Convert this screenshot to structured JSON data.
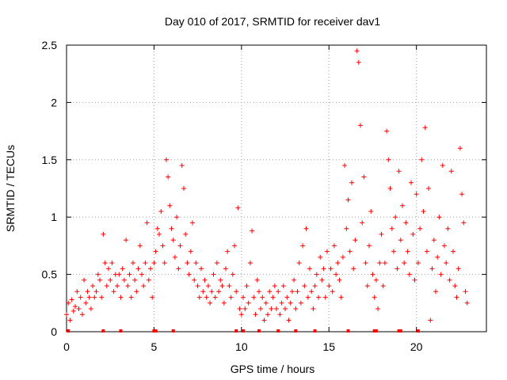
{
  "chart_data": {
    "type": "scatter",
    "title": "Day 010 of 2017, SRMTID for receiver dav1",
    "xlabel": "GPS time / hours",
    "ylabel": "SRMTID / TECUs",
    "xlim": [
      0,
      24
    ],
    "ylim": [
      0,
      2.5
    ],
    "x_ticks": [
      "0",
      "5",
      "10",
      "15",
      "20"
    ],
    "y_ticks": [
      "0",
      "0.5",
      "1",
      "1.5",
      "2",
      "2.5"
    ],
    "x_tick_values": [
      0,
      5,
      10,
      15,
      20
    ],
    "y_tick_values": [
      0,
      0.5,
      1,
      1.5,
      2,
      2.5
    ],
    "grid": true,
    "marker": "+",
    "color": "#ff0000",
    "series": [
      {
        "name": "SRMTID",
        "points": [
          [
            0.0,
            0.15
          ],
          [
            0.1,
            0.25
          ],
          [
            0.2,
            0.1
          ],
          [
            0.3,
            0.28
          ],
          [
            0.4,
            0.18
          ],
          [
            0.5,
            0.22
          ],
          [
            0.6,
            0.35
          ],
          [
            0.7,
            0.2
          ],
          [
            0.8,
            0.3
          ],
          [
            0.9,
            0.15
          ],
          [
            1.0,
            0.45
          ],
          [
            1.1,
            0.25
          ],
          [
            1.2,
            0.35
          ],
          [
            1.3,
            0.3
          ],
          [
            1.4,
            0.2
          ],
          [
            1.5,
            0.4
          ],
          [
            1.6,
            0.3
          ],
          [
            1.7,
            0.35
          ],
          [
            1.8,
            0.5
          ],
          [
            1.9,
            0.45
          ],
          [
            2.0,
            0.3
          ],
          [
            2.1,
            0.85
          ],
          [
            2.2,
            0.6
          ],
          [
            2.3,
            0.4
          ],
          [
            2.4,
            0.55
          ],
          [
            2.5,
            0.45
          ],
          [
            2.6,
            0.6
          ],
          [
            2.7,
            0.35
          ],
          [
            2.8,
            0.5
          ],
          [
            2.9,
            0.4
          ],
          [
            3.0,
            0.5
          ],
          [
            3.1,
            0.3
          ],
          [
            3.2,
            0.55
          ],
          [
            3.3,
            0.45
          ],
          [
            3.4,
            0.8
          ],
          [
            3.5,
            0.4
          ],
          [
            3.6,
            0.5
          ],
          [
            3.7,
            0.3
          ],
          [
            3.8,
            0.6
          ],
          [
            3.9,
            0.45
          ],
          [
            4.0,
            0.35
          ],
          [
            4.1,
            0.55
          ],
          [
            4.2,
            0.75
          ],
          [
            4.3,
            0.5
          ],
          [
            4.4,
            0.4
          ],
          [
            4.5,
            0.6
          ],
          [
            4.6,
            0.95
          ],
          [
            4.7,
            0.45
          ],
          [
            4.8,
            0.55
          ],
          [
            4.9,
            0.3
          ],
          [
            5.0,
            0.6
          ],
          [
            5.1,
            0.7
          ],
          [
            5.2,
            0.9
          ],
          [
            5.3,
            0.85
          ],
          [
            5.4,
            1.05
          ],
          [
            5.5,
            0.75
          ],
          [
            5.6,
            0.6
          ],
          [
            5.7,
            1.5
          ],
          [
            5.8,
            1.35
          ],
          [
            5.9,
            1.1
          ],
          [
            6.0,
            0.9
          ],
          [
            6.1,
            0.8
          ],
          [
            6.2,
            0.65
          ],
          [
            6.3,
            1.0
          ],
          [
            6.4,
            0.55
          ],
          [
            6.5,
            0.75
          ],
          [
            6.6,
            1.45
          ],
          [
            6.7,
            1.25
          ],
          [
            6.8,
            0.85
          ],
          [
            6.9,
            0.6
          ],
          [
            7.0,
            0.5
          ],
          [
            7.1,
            0.7
          ],
          [
            7.2,
            0.95
          ],
          [
            7.3,
            0.45
          ],
          [
            7.4,
            0.6
          ],
          [
            7.5,
            0.4
          ],
          [
            7.6,
            0.3
          ],
          [
            7.7,
            0.55
          ],
          [
            7.8,
            0.35
          ],
          [
            7.9,
            0.45
          ],
          [
            8.0,
            0.3
          ],
          [
            8.1,
            0.4
          ],
          [
            8.2,
            0.25
          ],
          [
            8.3,
            0.35
          ],
          [
            8.4,
            0.5
          ],
          [
            8.5,
            0.3
          ],
          [
            8.6,
            0.6
          ],
          [
            8.7,
            0.35
          ],
          [
            8.8,
            0.45
          ],
          [
            8.9,
            0.4
          ],
          [
            9.0,
            0.25
          ],
          [
            9.1,
            0.55
          ],
          [
            9.2,
            0.7
          ],
          [
            9.3,
            0.4
          ],
          [
            9.4,
            0.3
          ],
          [
            9.5,
            0.5
          ],
          [
            9.6,
            0.75
          ],
          [
            9.7,
            0.35
          ],
          [
            9.8,
            1.08
          ],
          [
            9.9,
            0.2
          ],
          [
            10.0,
            0.15
          ],
          [
            10.1,
            0.3
          ],
          [
            10.2,
            0.2
          ],
          [
            10.3,
            0.4
          ],
          [
            10.4,
            0.25
          ],
          [
            10.5,
            0.6
          ],
          [
            10.6,
            0.88
          ],
          [
            10.7,
            0.3
          ],
          [
            10.8,
            0.15
          ],
          [
            10.9,
            0.45
          ],
          [
            11.0,
            0.35
          ],
          [
            11.1,
            0.2
          ],
          [
            11.2,
            0.3
          ],
          [
            11.3,
            0.1
          ],
          [
            11.4,
            0.25
          ],
          [
            11.5,
            0.15
          ],
          [
            11.6,
            0.35
          ],
          [
            11.7,
            0.2
          ],
          [
            11.8,
            0.3
          ],
          [
            11.9,
            0.4
          ],
          [
            12.0,
            0.2
          ],
          [
            12.1,
            0.35
          ],
          [
            12.2,
            0.15
          ],
          [
            12.3,
            0.25
          ],
          [
            12.4,
            0.4
          ],
          [
            12.5,
            0.2
          ],
          [
            12.6,
            0.3
          ],
          [
            12.7,
            0.1
          ],
          [
            12.8,
            0.25
          ],
          [
            12.9,
            0.35
          ],
          [
            13.0,
            0.45
          ],
          [
            13.1,
            0.2
          ],
          [
            13.2,
            0.35
          ],
          [
            13.3,
            0.6
          ],
          [
            13.4,
            0.25
          ],
          [
            13.5,
            0.75
          ],
          [
            13.6,
            0.4
          ],
          [
            13.7,
            0.9
          ],
          [
            13.8,
            0.3
          ],
          [
            13.9,
            0.55
          ],
          [
            14.0,
            0.35
          ],
          [
            14.1,
            0.2
          ],
          [
            14.2,
            0.4
          ],
          [
            14.3,
            0.5
          ],
          [
            14.4,
            0.3
          ],
          [
            14.5,
            0.65
          ],
          [
            14.6,
            0.45
          ],
          [
            14.7,
            0.55
          ],
          [
            14.8,
            0.3
          ],
          [
            14.9,
            0.7
          ],
          [
            15.0,
            0.4
          ],
          [
            15.1,
            0.55
          ],
          [
            15.2,
            0.35
          ],
          [
            15.3,
            0.75
          ],
          [
            15.4,
            0.5
          ],
          [
            15.5,
            0.6
          ],
          [
            15.6,
            0.45
          ],
          [
            15.7,
            0.3
          ],
          [
            15.8,
            0.65
          ],
          [
            15.9,
            1.45
          ],
          [
            16.0,
            0.9
          ],
          [
            16.1,
            1.15
          ],
          [
            16.2,
            0.7
          ],
          [
            16.3,
            1.3
          ],
          [
            16.4,
            0.55
          ],
          [
            16.5,
            0.8
          ],
          [
            16.6,
            2.45
          ],
          [
            16.7,
            2.35
          ],
          [
            16.8,
            1.8
          ],
          [
            16.9,
            0.95
          ],
          [
            17.0,
            1.35
          ],
          [
            17.1,
            0.6
          ],
          [
            17.2,
            0.4
          ],
          [
            17.3,
            0.75
          ],
          [
            17.4,
            1.05
          ],
          [
            17.5,
            0.5
          ],
          [
            17.6,
            0.3
          ],
          [
            17.7,
            0.45
          ],
          [
            17.8,
            0.2
          ],
          [
            17.9,
            0.6
          ],
          [
            18.0,
            0.85
          ],
          [
            18.1,
            0.4
          ],
          [
            18.2,
            0.6
          ],
          [
            18.3,
            1.75
          ],
          [
            18.4,
            1.5
          ],
          [
            18.5,
            1.25
          ],
          [
            18.6,
            0.9
          ],
          [
            18.7,
            0.7
          ],
          [
            18.8,
            1.0
          ],
          [
            18.9,
            0.55
          ],
          [
            19.0,
            1.4
          ],
          [
            19.1,
            0.8
          ],
          [
            19.2,
            1.1
          ],
          [
            19.3,
            0.6
          ],
          [
            19.4,
            0.95
          ],
          [
            19.5,
            0.7
          ],
          [
            19.6,
            0.5
          ],
          [
            19.7,
            1.3
          ],
          [
            19.8,
            0.85
          ],
          [
            19.9,
            0.45
          ],
          [
            20.0,
            1.2
          ],
          [
            20.1,
            0.6
          ],
          [
            20.2,
            0.9
          ],
          [
            20.3,
            1.5
          ],
          [
            20.4,
            1.05
          ],
          [
            20.5,
            1.78
          ],
          [
            20.6,
            0.7
          ],
          [
            20.7,
            1.25
          ],
          [
            20.8,
            0.1
          ],
          [
            20.9,
            0.55
          ],
          [
            21.0,
            0.8
          ],
          [
            21.1,
            0.35
          ],
          [
            21.2,
            0.65
          ],
          [
            21.3,
            1.0
          ],
          [
            21.4,
            0.5
          ],
          [
            21.5,
            1.45
          ],
          [
            21.6,
            0.75
          ],
          [
            21.7,
            0.6
          ],
          [
            21.8,
            0.9
          ],
          [
            21.9,
            0.45
          ],
          [
            22.0,
            1.4
          ],
          [
            22.1,
            0.7
          ],
          [
            22.2,
            0.4
          ],
          [
            22.3,
            0.3
          ],
          [
            22.4,
            0.55
          ],
          [
            22.5,
            1.6
          ],
          [
            22.6,
            1.2
          ],
          [
            22.7,
            0.95
          ],
          [
            22.8,
            0.35
          ],
          [
            22.9,
            0.25
          ]
        ]
      }
    ],
    "zero_markers_x": [
      0.1,
      2.1,
      3.1,
      5.0,
      5.1,
      6.1,
      9.7,
      10.1,
      11.0,
      12.1,
      13.1,
      14.2,
      16.1,
      17.6,
      17.7,
      19.0,
      19.1,
      20.1
    ]
  }
}
